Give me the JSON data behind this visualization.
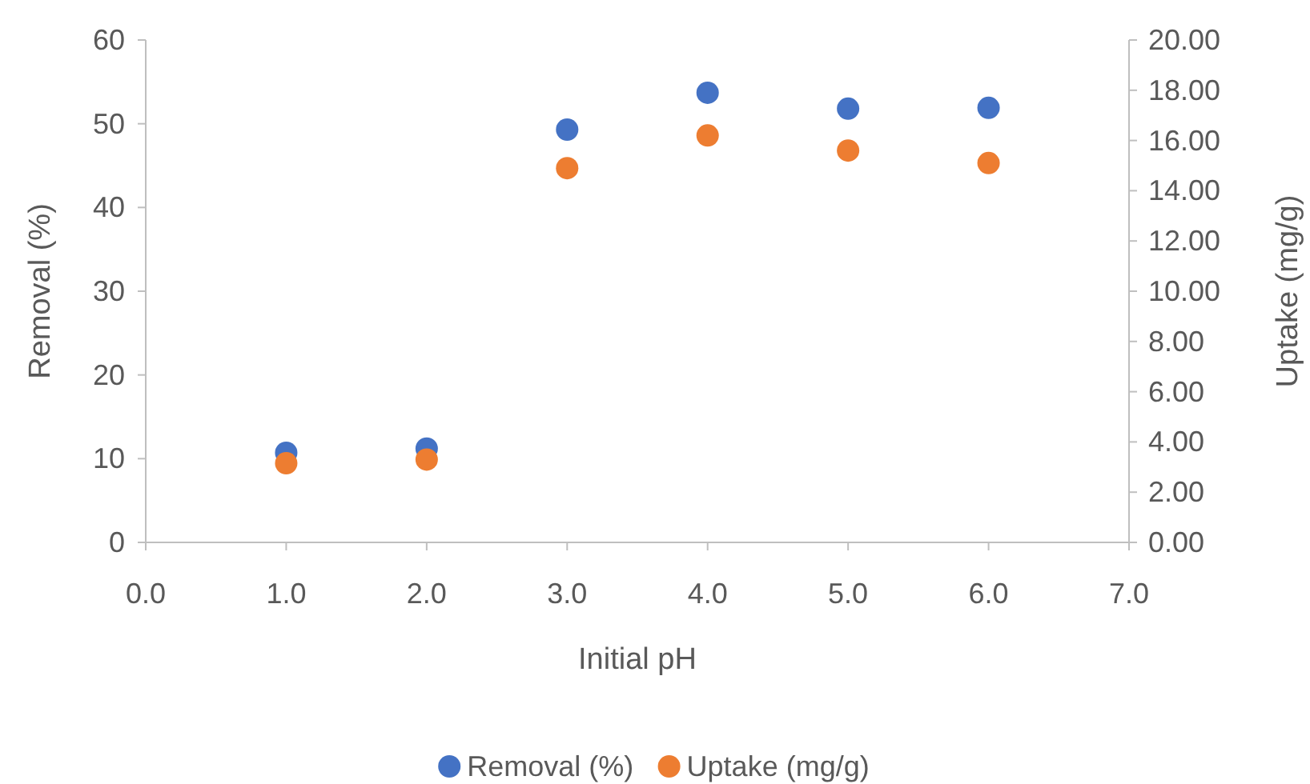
{
  "chart_data": {
    "type": "scatter",
    "xlabel": "Initial pH",
    "ylabel": "Removal (%)",
    "y2label": "Uptake (mg/g)",
    "x": [
      1,
      2,
      3,
      4,
      5,
      6
    ],
    "series": [
      {
        "name": "Removal (%)",
        "color": "#4472c4",
        "values": [
          10.7,
          11.2,
          49.3,
          53.7,
          51.8,
          51.9
        ]
      },
      {
        "name": "Uptake (mg/g)",
        "color": "#ed7d31",
        "axis": "y2",
        "values": [
          3.15,
          3.3,
          14.9,
          16.2,
          15.6,
          15.1
        ]
      }
    ],
    "xlim": [
      0,
      7
    ],
    "xticks": [
      {
        "value": 0,
        "label": "0.0"
      },
      {
        "value": 1,
        "label": "1.0"
      },
      {
        "value": 2,
        "label": "2.0"
      },
      {
        "value": 3,
        "label": "3.0"
      },
      {
        "value": 4,
        "label": "4.0"
      },
      {
        "value": 5,
        "label": "5.0"
      },
      {
        "value": 6,
        "label": "6.0"
      },
      {
        "value": 7,
        "label": "7.0"
      }
    ],
    "ylim": [
      0,
      60
    ],
    "yticks": [
      0,
      10,
      20,
      30,
      40,
      50,
      60
    ],
    "y2lim": [
      0,
      20
    ],
    "y2ticks": [
      {
        "value": 0,
        "label": "0.00"
      },
      {
        "value": 2,
        "label": "2.00"
      },
      {
        "value": 4,
        "label": "4.00"
      },
      {
        "value": 6,
        "label": "6.00"
      },
      {
        "value": 8,
        "label": "8.00"
      },
      {
        "value": 10,
        "label": "10.00"
      },
      {
        "value": 12,
        "label": "12.00"
      },
      {
        "value": 14,
        "label": "14.00"
      },
      {
        "value": 16,
        "label": "16.00"
      },
      {
        "value": 18,
        "label": "18.00"
      },
      {
        "value": 20,
        "label": "20.00"
      }
    ],
    "marker": "circle",
    "legend": "bottom",
    "grid": false
  }
}
